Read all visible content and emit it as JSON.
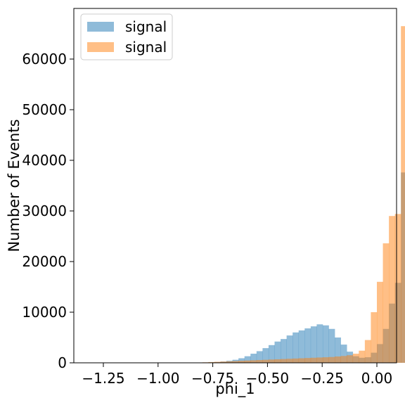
{
  "chart_data": {
    "type": "bar",
    "title": "",
    "xlabel": "phi_1",
    "ylabel": "Number of Events",
    "xlim": [
      -1.385,
      0.09
    ],
    "ylim": [
      0,
      70000
    ],
    "x_ticks": [
      -1.25,
      -1.0,
      -0.75,
      -0.5,
      -0.25,
      0.0
    ],
    "x_tick_labels": [
      "−1.25",
      "−1.00",
      "−0.75",
      "−0.50",
      "−0.25",
      "0.00"
    ],
    "y_ticks": [
      0,
      10000,
      20000,
      30000,
      40000,
      50000,
      60000
    ],
    "y_tick_labels": [
      "0",
      "10000",
      "20000",
      "30000",
      "40000",
      "50000",
      "60000"
    ],
    "legend_position": "top-left",
    "bin_width": 0.0275,
    "bin_edges_start": -1.32,
    "series": [
      {
        "name": "signal",
        "color": "#1f77b4",
        "alpha": 0.5,
        "values": [
          0,
          0,
          0,
          0,
          0,
          0,
          0,
          0,
          0,
          0,
          0,
          0,
          0,
          0,
          0,
          0,
          0,
          0,
          0,
          50,
          100,
          150,
          250,
          400,
          600,
          900,
          1300,
          1800,
          2300,
          2900,
          3500,
          4200,
          4700,
          5400,
          6000,
          6400,
          6800,
          7200,
          7600,
          7400,
          6700,
          5000,
          3600,
          2200,
          1300,
          1000,
          1100,
          2000,
          3700,
          6700,
          11700,
          15800,
          37600
        ]
      },
      {
        "name": "signal",
        "color": "#ff7f0e",
        "alpha": 0.5,
        "values": [
          0,
          0,
          0,
          0,
          0,
          0,
          0,
          0,
          0,
          0,
          0,
          0,
          0,
          0,
          0,
          0,
          0,
          0,
          0,
          100,
          150,
          200,
          250,
          300,
          350,
          400,
          450,
          500,
          550,
          600,
          650,
          700,
          750,
          800,
          850,
          900,
          950,
          1000,
          1050,
          1100,
          1150,
          1250,
          1350,
          1500,
          1800,
          2400,
          4500,
          10000,
          16000,
          23600,
          29000,
          29400,
          66500
        ]
      }
    ]
  }
}
